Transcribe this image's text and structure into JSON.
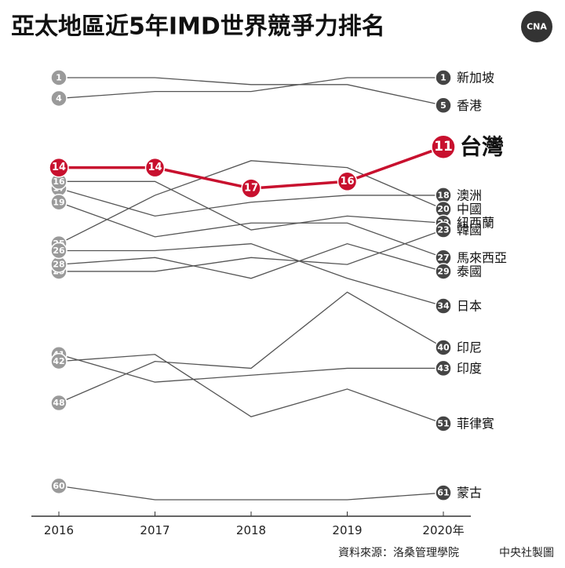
{
  "chart_data": {
    "type": "line",
    "title": "亞太地區近5年IMD世界競爭力排名",
    "logo_text": "CNA",
    "source": "資料來源：洛桑管理學院",
    "credit": "中央社製圖",
    "categories": [
      "2016",
      "2017",
      "2018",
      "2019",
      "2020年"
    ],
    "ylim": [
      1,
      62
    ],
    "reverse_y": true,
    "series": [
      {
        "name": "新加坡",
        "color": "#555555",
        "values": [
          4,
          3,
          3,
          1,
          1
        ]
      },
      {
        "name": "香港",
        "color": "#555555",
        "values": [
          1,
          1,
          2,
          2,
          5
        ]
      },
      {
        "name": "澳洲",
        "color": "#555555",
        "values": [
          17,
          21,
          19,
          18,
          18
        ]
      },
      {
        "name": "中國",
        "color": "#555555",
        "values": [
          25,
          18,
          13,
          14,
          20
        ]
      },
      {
        "name": "紐西蘭",
        "color": "#555555",
        "values": [
          16,
          16,
          23,
          21,
          22
        ]
      },
      {
        "name": "韓國",
        "color": "#555555",
        "values": [
          29,
          29,
          27,
          28,
          23
        ]
      },
      {
        "name": "馬來西亞",
        "color": "#555555",
        "values": [
          19,
          24,
          22,
          22,
          27
        ]
      },
      {
        "name": "泰國",
        "color": "#555555",
        "values": [
          28,
          27,
          30,
          25,
          29
        ]
      },
      {
        "name": "日本",
        "color": "#555555",
        "values": [
          26,
          26,
          25,
          30,
          34
        ]
      },
      {
        "name": "印尼",
        "color": "#555555",
        "values": [
          48,
          42,
          43,
          32,
          40
        ]
      },
      {
        "name": "印度",
        "color": "#555555",
        "values": [
          41,
          45,
          44,
          43,
          43
        ]
      },
      {
        "name": "菲律賓",
        "color": "#555555",
        "values": [
          42,
          41,
          50,
          46,
          51
        ]
      },
      {
        "name": "蒙古",
        "color": "#555555",
        "values": [
          60,
          62,
          62,
          62,
          61
        ]
      },
      {
        "name": "台灣",
        "color": "#c8102e",
        "values": [
          14,
          14,
          17,
          16,
          11
        ],
        "highlight": true
      }
    ]
  }
}
